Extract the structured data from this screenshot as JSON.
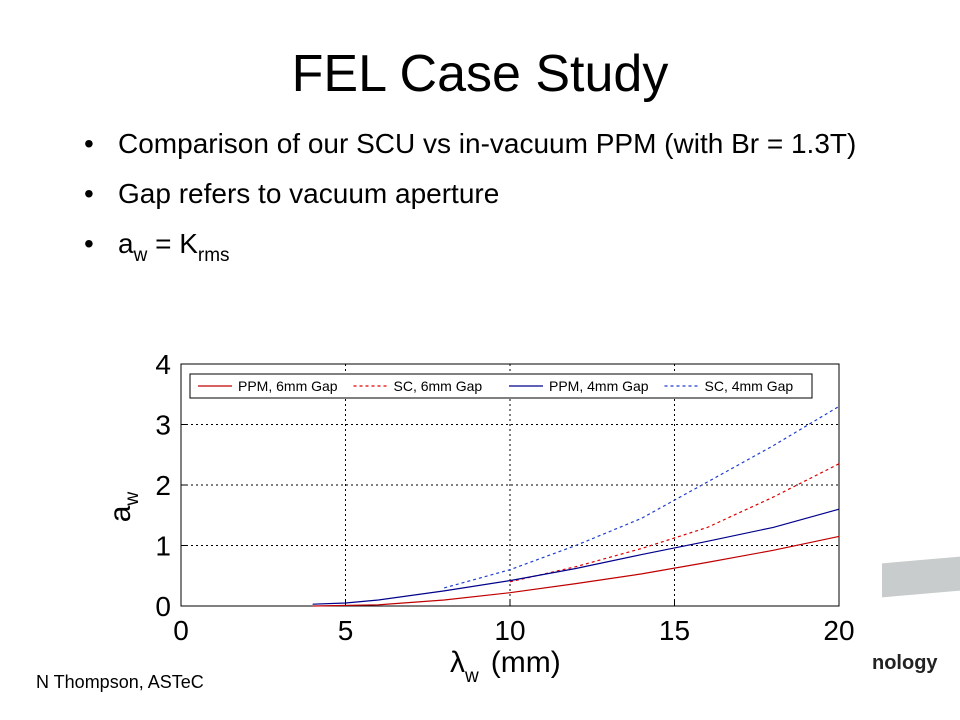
{
  "slide": {
    "title": "FEL Case Study",
    "bullets": [
      {
        "text": "Comparison of our SCU vs in-vacuum PPM (with Br = 1.3T)"
      },
      {
        "text": "Gap refers to vacuum aperture"
      },
      {
        "base": "a",
        "sub1": "w",
        "mid": " = K",
        "sub2": "rms"
      }
    ],
    "bullet_char": "•",
    "footer": "N Thompson, ASTeC",
    "logo_fragment": "nology"
  },
  "chart_data": {
    "type": "line",
    "xlabel": "λ",
    "xlabel_sub": "w",
    "xlabel_units": "(mm)",
    "ylabel": "a",
    "ylabel_sub": "w",
    "xlim": [
      0,
      20
    ],
    "ylim": [
      0,
      4
    ],
    "xticks": [
      0,
      5,
      10,
      15,
      20
    ],
    "yticks": [
      0,
      1,
      2,
      3,
      4
    ],
    "grid": true,
    "legend_position": "top",
    "series": [
      {
        "name": "PPM, 6mm Gap",
        "color": "#c00000",
        "dash": "solid",
        "x": [
          4,
          6,
          8,
          10,
          12,
          14,
          16,
          18,
          20
        ],
        "y": [
          0.0,
          0.02,
          0.1,
          0.22,
          0.37,
          0.53,
          0.72,
          0.92,
          1.15
        ]
      },
      {
        "name": "SC, 6mm Gap",
        "color": "#e00000",
        "dash": "dashed",
        "x": [
          10,
          12,
          14,
          16,
          18,
          20
        ],
        "y": [
          0.4,
          0.65,
          0.95,
          1.3,
          1.8,
          2.35
        ]
      },
      {
        "name": "PPM, 4mm Gap",
        "color": "#00008b",
        "dash": "solid",
        "x": [
          4,
          5,
          6,
          8,
          10,
          12,
          14,
          16,
          18,
          20
        ],
        "y": [
          0.03,
          0.05,
          0.1,
          0.25,
          0.42,
          0.62,
          0.85,
          1.07,
          1.3,
          1.6
        ]
      },
      {
        "name": "SC, 4mm Gap",
        "color": "#1f3fd0",
        "dash": "dashed",
        "x": [
          8,
          10,
          12,
          14,
          16,
          18,
          20
        ],
        "y": [
          0.3,
          0.6,
          1.0,
          1.45,
          2.05,
          2.65,
          3.3
        ]
      }
    ]
  }
}
